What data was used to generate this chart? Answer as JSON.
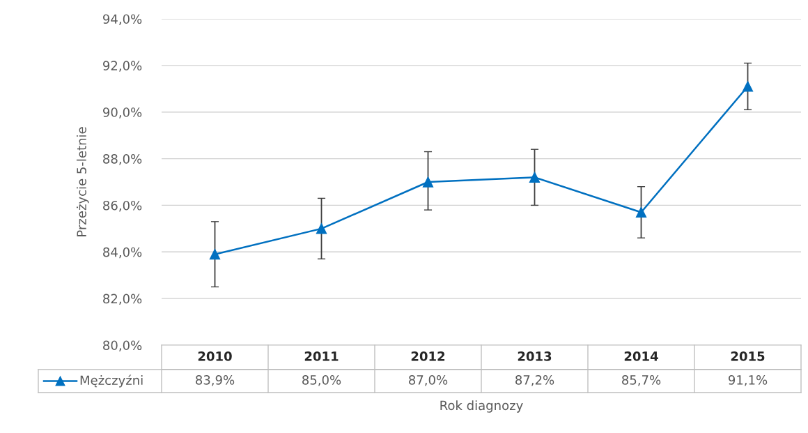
{
  "chart_data": {
    "type": "line",
    "xlabel": "Rok diagnozy",
    "ylabel": "Przeżycie 5-letnie",
    "categories": [
      "2010",
      "2011",
      "2012",
      "2013",
      "2014",
      "2015"
    ],
    "series": [
      {
        "name": "Mężczyźni",
        "color": "#0070c0",
        "values": [
          83.9,
          85.0,
          87.0,
          87.2,
          85.7,
          91.1
        ],
        "errors": [
          [
            82.5,
            85.3
          ],
          [
            83.7,
            86.3
          ],
          [
            85.8,
            88.3
          ],
          [
            86.0,
            88.4
          ],
          [
            84.6,
            86.8
          ],
          [
            90.1,
            92.1
          ]
        ],
        "value_labels": [
          "83,9%",
          "85,0%",
          "87,0%",
          "87,2%",
          "85,7%",
          "91,1%"
        ]
      }
    ],
    "ylim": [
      80,
      94
    ],
    "yticks": [
      {
        "value": 80,
        "label": "80,0%"
      },
      {
        "value": 82,
        "label": "82,0%"
      },
      {
        "value": 84,
        "label": "84,0%"
      },
      {
        "value": 86,
        "label": "86,0%"
      },
      {
        "value": 88,
        "label": "88,0%"
      },
      {
        "value": 90,
        "label": "90,0%"
      },
      {
        "value": 92,
        "label": "92,0%"
      },
      {
        "value": 94,
        "label": "94,0%"
      }
    ],
    "grid": "y",
    "marker": "triangle",
    "line_style": "solid"
  }
}
